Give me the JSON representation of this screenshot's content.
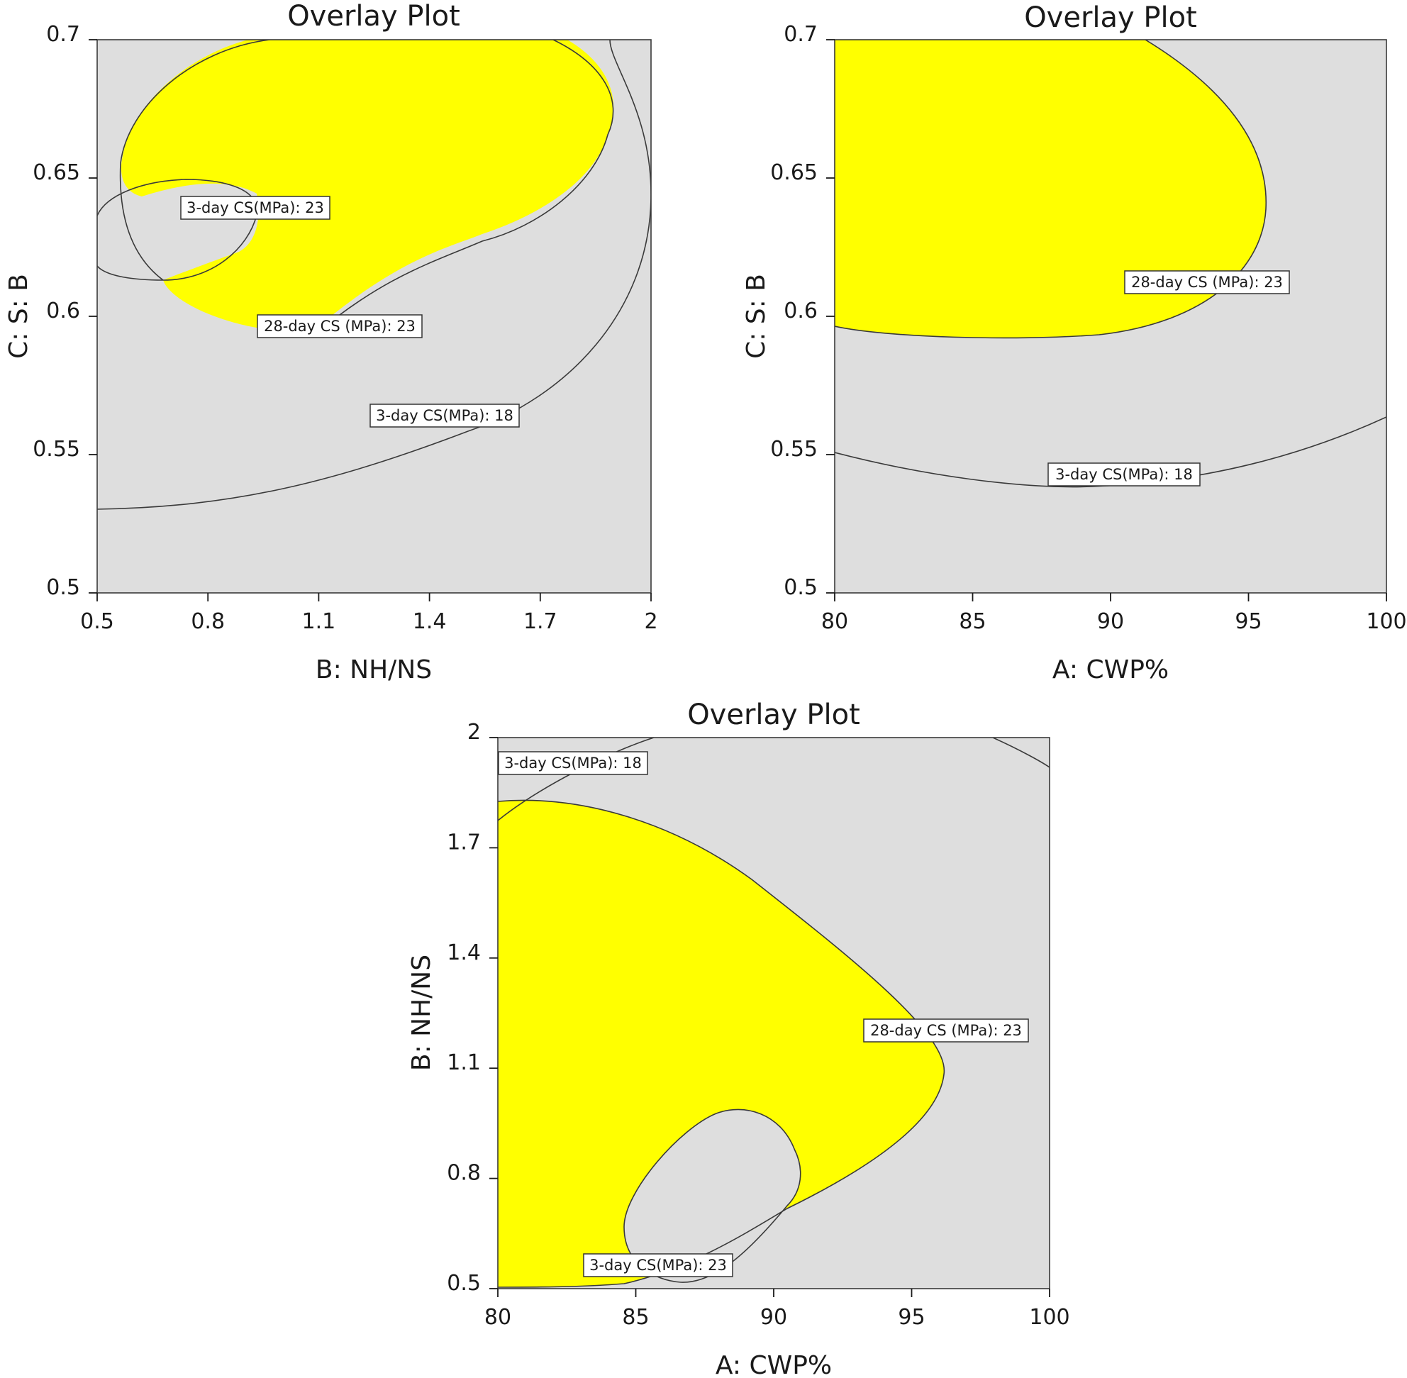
{
  "colors": {
    "plot_bg": "#dedede",
    "feasible": "#ffff00",
    "line": "#3a3a3a"
  },
  "chart_data": [
    {
      "type": "contour",
      "title": "Overlay Plot",
      "xlabel": "B: NH/NS",
      "ylabel": "C: S: B",
      "xlim": [
        0.5,
        2
      ],
      "ylim": [
        0.5,
        0.7
      ],
      "xticks": [
        "0.5",
        "0.8",
        "1.1",
        "1.4",
        "1.7",
        "2"
      ],
      "yticks": [
        "0.5",
        "0.55",
        "0.6",
        "0.65",
        "0.7"
      ],
      "contours": [
        {
          "label": "3-day CS(MPa): 23",
          "label_at": [
            0.86,
            0.64
          ]
        },
        {
          "label": "28-day CS (MPa): 23",
          "label_at": [
            1.18,
            0.596
          ]
        },
        {
          "label": "3-day CS(MPa): 18",
          "label_at": [
            1.5,
            0.564
          ]
        }
      ]
    },
    {
      "type": "contour",
      "title": "Overlay Plot",
      "xlabel": "A: CWP%",
      "ylabel": "C: S: B",
      "xlim": [
        80,
        100
      ],
      "ylim": [
        0.5,
        0.7
      ],
      "xticks": [
        "80",
        "85",
        "90",
        "95",
        "100"
      ],
      "yticks": [
        "0.5",
        "0.55",
        "0.6",
        "0.65",
        "0.7"
      ],
      "contours": [
        {
          "label": "28-day CS (MPa): 23",
          "label_at": [
            97.2,
            0.612
          ]
        },
        {
          "label": "3-day CS(MPa): 18",
          "label_at": [
            90.3,
            0.541
          ]
        }
      ]
    },
    {
      "type": "contour",
      "title": "Overlay Plot",
      "xlabel": "A: CWP%",
      "ylabel": "B: NH/NS",
      "xlim": [
        80,
        100
      ],
      "ylim": [
        0.5,
        2
      ],
      "xticks": [
        "80",
        "85",
        "90",
        "95",
        "100"
      ],
      "yticks": [
        "0.5",
        "0.8",
        "1.1",
        "1.4",
        "1.7",
        "2"
      ],
      "contours": [
        {
          "label": "3-day CS(MPa): 18",
          "label_at": [
            82.7,
            1.935
          ]
        },
        {
          "label": "28-day CS (MPa): 23",
          "label_at": [
            98.8,
            1.207
          ]
        },
        {
          "label": "3-day CS(MPa): 23",
          "label_at": [
            86.3,
            0.562
          ]
        }
      ]
    }
  ]
}
